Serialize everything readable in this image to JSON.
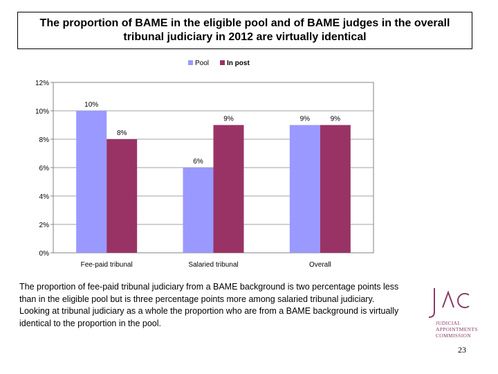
{
  "title": "The proportion of BAME in the eligible pool and of BAME judges in the overall tribunal judiciary in 2012 are virtually identical",
  "caption": "The proportion of fee-paid tribunal judiciary from a BAME background is two percentage points less than in the eligible pool but is three percentage points more among salaried tribunal judiciary. Looking at tribunal judiciary as a whole the proportion who are from a BAME background is virtually identical to the proportion in the pool.",
  "logo": {
    "mark": "JAC",
    "lines": [
      "JUDICIAL",
      "APPOINTMENTS",
      "COMMISSION"
    ],
    "color": "#8a3b66"
  },
  "page_number": "23",
  "chart_data": {
    "type": "bar",
    "categories": [
      "Fee-paid tribunal",
      "Salaried tribunal",
      "Overall"
    ],
    "series": [
      {
        "name": "Pool",
        "values": [
          10,
          6,
          9
        ],
        "labels": [
          "10%",
          "6%",
          "9%"
        ],
        "color": "#9999ff"
      },
      {
        "name": "In post",
        "values": [
          8,
          9,
          9
        ],
        "labels": [
          "8%",
          "9%",
          "9%"
        ],
        "color": "#993366"
      }
    ],
    "y_ticks": [
      "0%",
      "2%",
      "4%",
      "6%",
      "8%",
      "10%",
      "12%"
    ],
    "ylim": [
      0,
      12
    ],
    "grid": true,
    "legend_position": "top",
    "plot_background": "#ffffff"
  }
}
